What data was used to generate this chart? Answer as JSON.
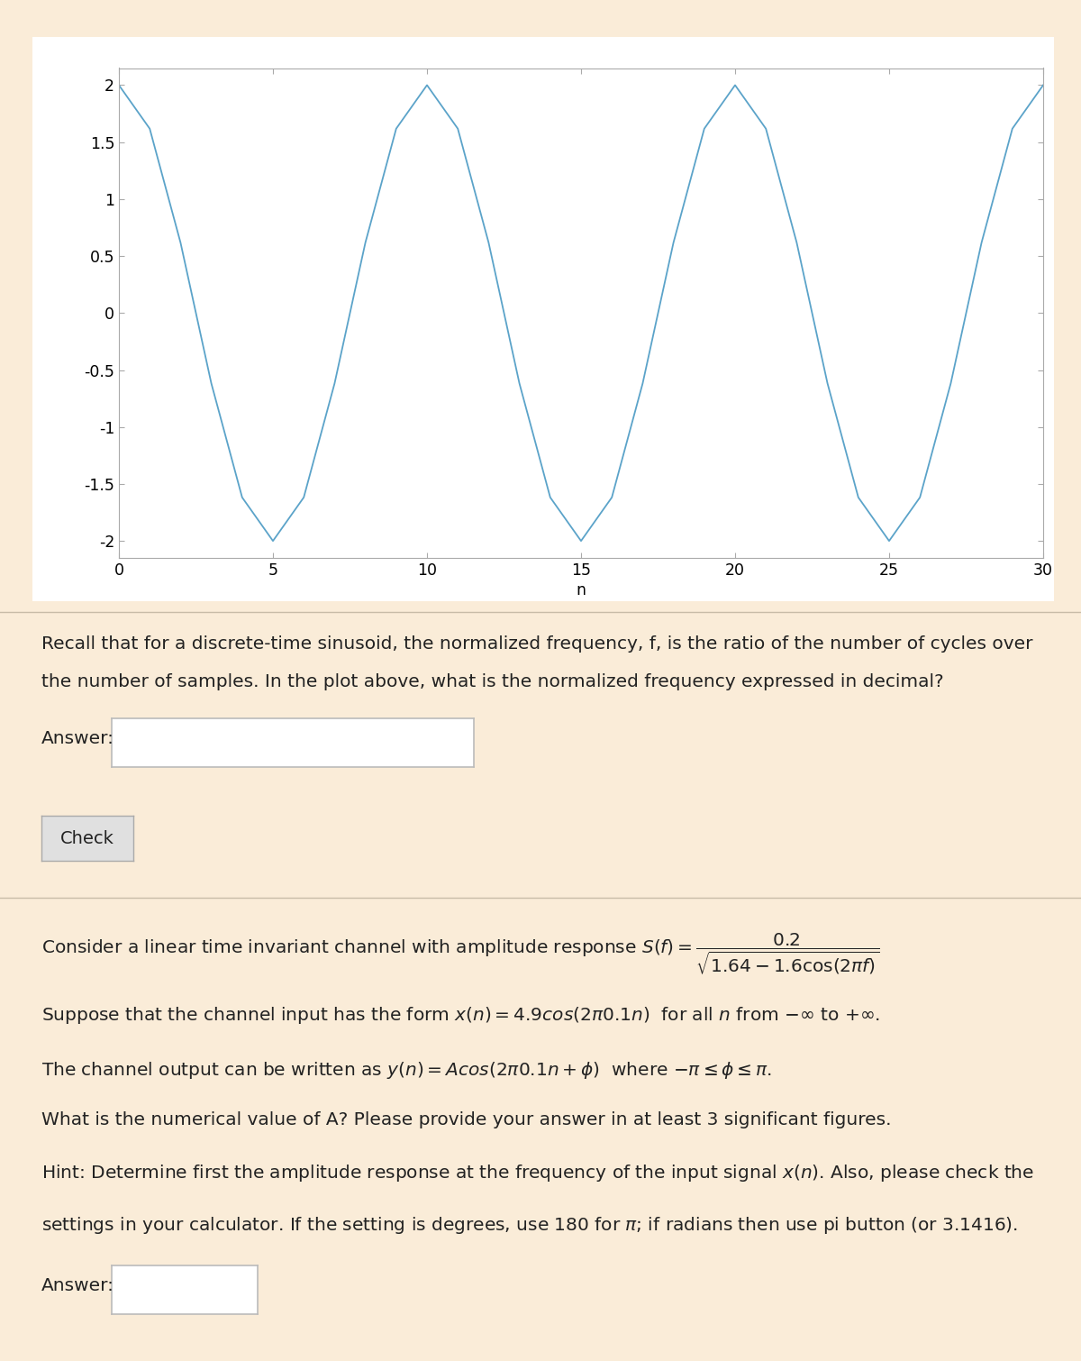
{
  "bg_color": "#faecd8",
  "panel_color": "#ffffff",
  "plot_bg": "#ffffff",
  "line_color": "#5ba3c9",
  "line_width": 1.3,
  "amplitude": 2.0,
  "frequency": 0.1,
  "n_start": 0,
  "n_end": 30,
  "xlabel": "n",
  "yticks": [
    -2,
    -1.5,
    -1,
    -0.5,
    0,
    0.5,
    1,
    1.5,
    2
  ],
  "xticks": [
    0,
    5,
    10,
    15,
    20,
    25,
    30
  ],
  "ylim": [
    -2.15,
    2.15
  ],
  "xlim": [
    0,
    30
  ],
  "font_size_body": 14.5,
  "font_size_axis": 12.5,
  "divider_color": "#c8bca8",
  "spine_color": "#aaaaaa",
  "q1_line1": "Recall that for a discrete-time sinusoid, the normalized frequency, f, is the ratio of the number of cycles over",
  "q1_line2": "the number of samples. In the plot above, what is the normalized frequency expressed in decimal?",
  "answer_label": "Answer:",
  "check_label": "Check",
  "q2_line1a": "Consider a linear time invariant channel with amplitude response ",
  "q2_line2": "Suppose that the channel input has the form $x(n) = 4.9cos(2\\pi 0.1n)$  for all $n$ from $-\\infty$ to $+\\infty$.",
  "q2_line3": "The channel output can be written as $y(n) = Acos(2\\pi 0.1n + \\phi)$  where $-\\pi \\leq \\phi \\leq \\pi$.",
  "q2_line4": "What is the numerical value of A? Please provide your answer in at least 3 significant figures.",
  "hint1": "Hint: Determine first the amplitude response at the frequency of the input signal $x(n)$. Also, please check the",
  "hint2": "settings in your calculator. If the setting is degrees, use 180 for $\\pi$; if radians then use pi button (or 3.1416).",
  "answer2_label": "Answer:"
}
